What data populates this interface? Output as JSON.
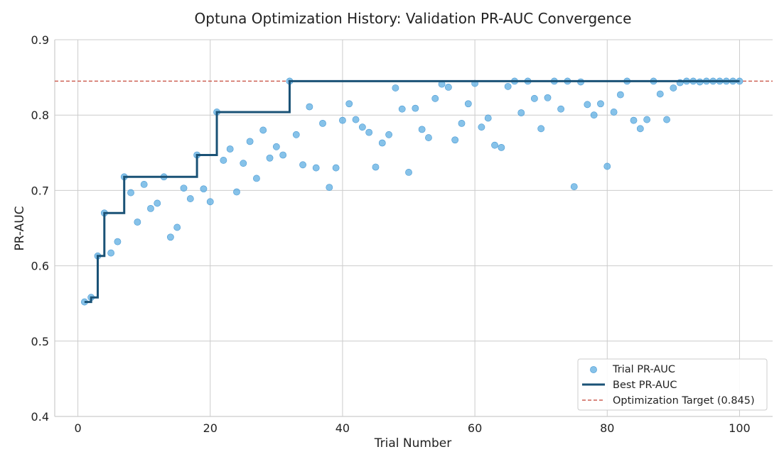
{
  "chart_data": {
    "type": "scatter",
    "title": "Optuna Optimization History: Validation PR-AUC Convergence",
    "xlabel": "Trial Number",
    "ylabel": "PR-AUC",
    "xlim": [
      -3.5,
      105
    ],
    "ylim": [
      0.4,
      0.9
    ],
    "xticks": [
      0,
      20,
      40,
      60,
      80,
      100
    ],
    "yticks": [
      0.4,
      0.5,
      0.6,
      0.7,
      0.8,
      0.9
    ],
    "xtick_labels": [
      "0",
      "20",
      "40",
      "60",
      "80",
      "100"
    ],
    "ytick_labels": [
      "0.4",
      "0.5",
      "0.6",
      "0.7",
      "0.8",
      "0.9"
    ],
    "grid": true,
    "legend_position": "bottom-right",
    "series": [
      {
        "name": "Trial PR-AUC",
        "kind": "scatter",
        "color": "#5dade2",
        "x": [
          1,
          2,
          3,
          4,
          5,
          6,
          7,
          8,
          9,
          10,
          11,
          12,
          13,
          14,
          15,
          16,
          17,
          18,
          19,
          20,
          21,
          22,
          23,
          24,
          25,
          26,
          27,
          28,
          29,
          30,
          31,
          32,
          33,
          34,
          35,
          36,
          37,
          38,
          39,
          40,
          41,
          42,
          43,
          44,
          45,
          46,
          47,
          48,
          49,
          50,
          51,
          52,
          53,
          54,
          55,
          56,
          57,
          58,
          59,
          60,
          61,
          62,
          63,
          64,
          65,
          66,
          67,
          68,
          69,
          70,
          71,
          72,
          73,
          74,
          75,
          76,
          77,
          78,
          79,
          80,
          81,
          82,
          83,
          84,
          85,
          86,
          87,
          88,
          89,
          90,
          91,
          92,
          93,
          94,
          95,
          96,
          97,
          98,
          99,
          100
        ],
        "y": [
          0.552,
          0.558,
          0.613,
          0.67,
          0.617,
          0.632,
          0.718,
          0.697,
          0.658,
          0.708,
          0.676,
          0.683,
          0.718,
          0.638,
          0.651,
          0.703,
          0.689,
          0.747,
          0.702,
          0.685,
          0.804,
          0.74,
          0.755,
          0.698,
          0.736,
          0.765,
          0.716,
          0.78,
          0.743,
          0.758,
          0.747,
          0.845,
          0.774,
          0.734,
          0.811,
          0.73,
          0.789,
          0.704,
          0.73,
          0.793,
          0.815,
          0.794,
          0.784,
          0.777,
          0.731,
          0.763,
          0.774,
          0.836,
          0.808,
          0.724,
          0.809,
          0.781,
          0.77,
          0.822,
          0.841,
          0.837,
          0.767,
          0.789,
          0.815,
          0.842,
          0.784,
          0.796,
          0.76,
          0.757,
          0.838,
          0.845,
          0.803,
          0.845,
          0.822,
          0.782,
          0.823,
          0.845,
          0.808,
          0.845,
          0.705,
          0.844,
          0.814,
          0.8,
          0.815,
          0.732,
          0.804,
          0.827,
          0.845,
          0.793,
          0.782,
          0.794,
          0.845,
          0.828,
          0.794,
          0.836,
          0.843,
          0.845,
          0.845,
          0.844,
          0.845,
          0.845,
          0.845,
          0.845,
          0.845,
          0.845
        ]
      },
      {
        "name": "Best PR-AUC",
        "kind": "step",
        "color": "#1a5276",
        "x": [
          1,
          2,
          3,
          4,
          5,
          6,
          7,
          8,
          9,
          10,
          11,
          12,
          13,
          14,
          15,
          16,
          17,
          18,
          19,
          20,
          21,
          22,
          23,
          24,
          25,
          26,
          27,
          28,
          29,
          30,
          31,
          32,
          33,
          34,
          35,
          36,
          37,
          38,
          39,
          40,
          41,
          42,
          43,
          44,
          45,
          46,
          47,
          48,
          49,
          50,
          51,
          52,
          53,
          54,
          55,
          56,
          57,
          58,
          59,
          60,
          61,
          62,
          63,
          64,
          65,
          66,
          67,
          68,
          69,
          70,
          71,
          72,
          73,
          74,
          75,
          76,
          77,
          78,
          79,
          80,
          81,
          82,
          83,
          84,
          85,
          86,
          87,
          88,
          89,
          90,
          91,
          92,
          93,
          94,
          95,
          96,
          97,
          98,
          99,
          100
        ],
        "y": [
          0.552,
          0.558,
          0.613,
          0.67,
          0.67,
          0.67,
          0.718,
          0.718,
          0.718,
          0.718,
          0.718,
          0.718,
          0.718,
          0.718,
          0.718,
          0.718,
          0.718,
          0.747,
          0.747,
          0.747,
          0.804,
          0.804,
          0.804,
          0.804,
          0.804,
          0.804,
          0.804,
          0.804,
          0.804,
          0.804,
          0.804,
          0.845,
          0.845,
          0.845,
          0.845,
          0.845,
          0.845,
          0.845,
          0.845,
          0.845,
          0.845,
          0.845,
          0.845,
          0.845,
          0.845,
          0.845,
          0.845,
          0.845,
          0.845,
          0.845,
          0.845,
          0.845,
          0.845,
          0.845,
          0.845,
          0.845,
          0.845,
          0.845,
          0.845,
          0.845,
          0.845,
          0.845,
          0.845,
          0.845,
          0.845,
          0.845,
          0.845,
          0.845,
          0.845,
          0.845,
          0.845,
          0.845,
          0.845,
          0.845,
          0.845,
          0.845,
          0.845,
          0.845,
          0.845,
          0.845,
          0.845,
          0.845,
          0.845,
          0.845,
          0.845,
          0.845,
          0.845,
          0.845,
          0.845,
          0.845,
          0.845,
          0.845,
          0.845,
          0.845,
          0.845,
          0.845,
          0.845,
          0.845,
          0.845,
          0.845
        ]
      },
      {
        "name": "Optimization Target (0.845)",
        "kind": "hline",
        "color": "#cd6155",
        "y": 0.845
      }
    ]
  }
}
